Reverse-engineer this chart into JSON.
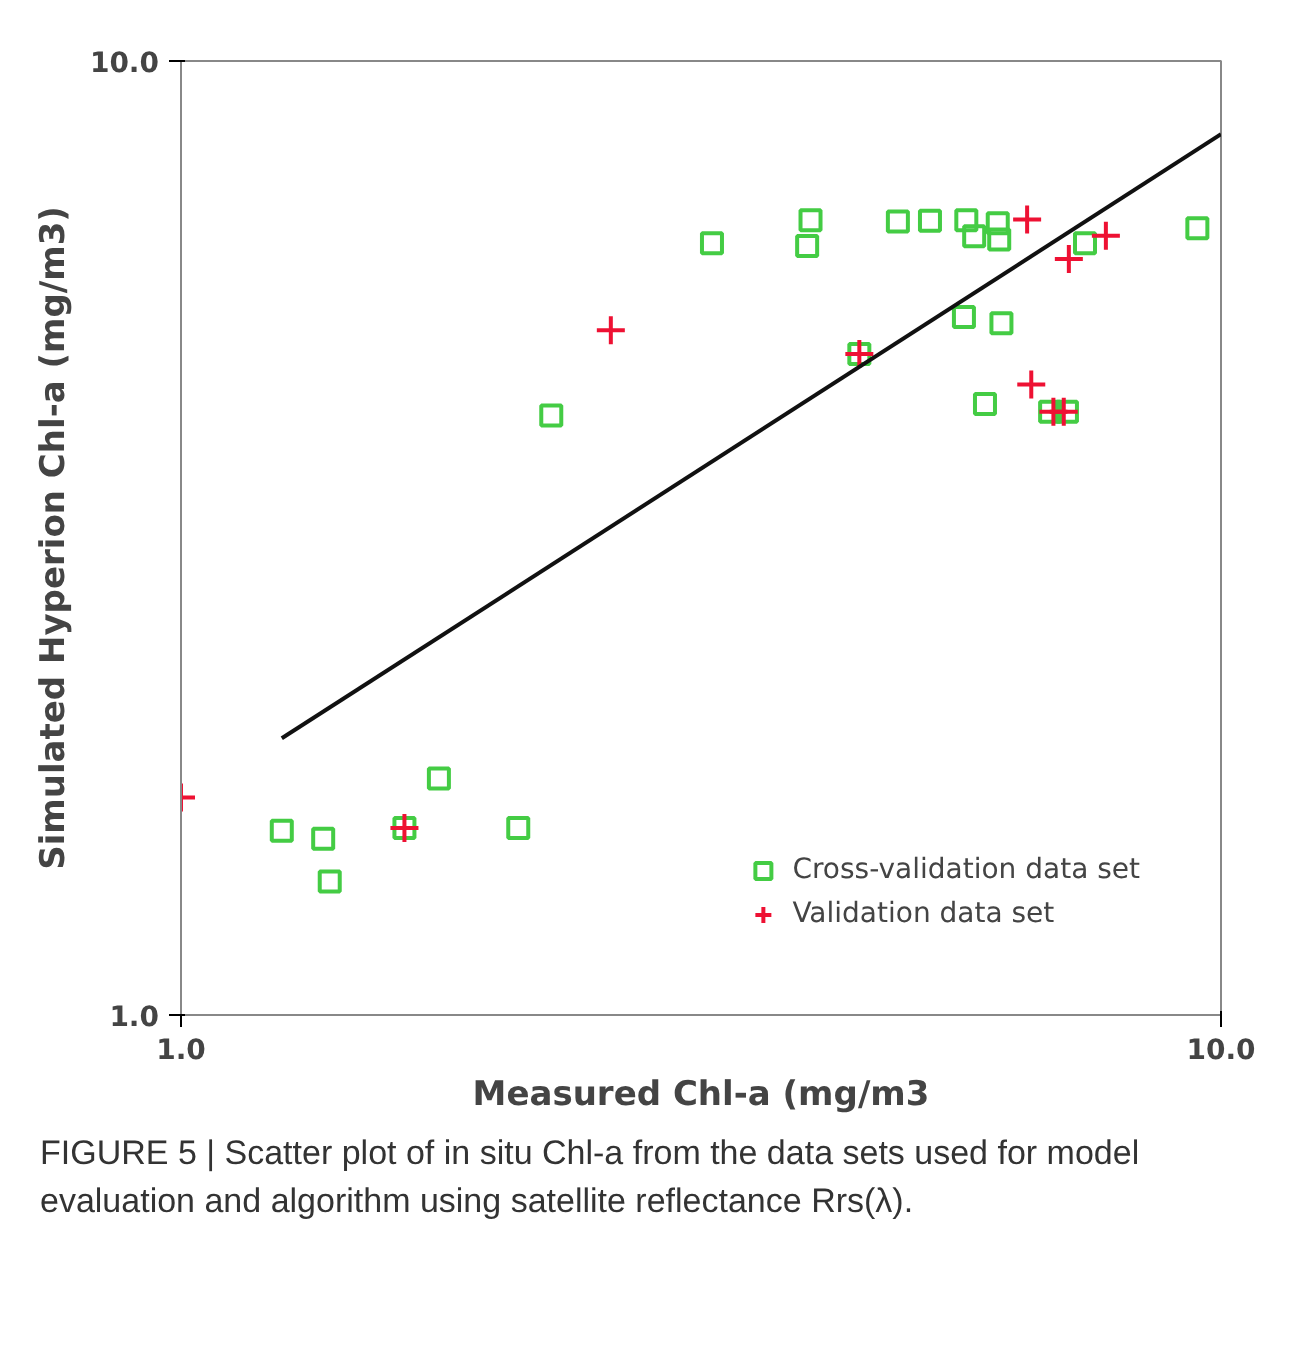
{
  "chart_data": {
    "type": "scatter",
    "xlabel": "Measured Chl-a (mg/m3",
    "ylabel": "Simulated Hyperion Chl-a (mg/m3)",
    "log": "xy",
    "xlim": [
      1,
      10
    ],
    "ylim": [
      1,
      10
    ],
    "xticks": [
      {
        "value": 1,
        "label": "1.0"
      },
      {
        "value": 10,
        "label": "10.0"
      }
    ],
    "yticks": [
      {
        "value": 1,
        "label": "1.0"
      },
      {
        "value": 10,
        "label": "10.0"
      }
    ],
    "legend": "bottom right",
    "series": [
      {
        "name": "Cross-validation data set",
        "color": "#44cc44",
        "marker": "square",
        "x": [
          3.24,
          4.03,
          4.0,
          4.89,
          5.25,
          5.69,
          5.79,
          6.1,
          6.12,
          7.4,
          9.49,
          5.66,
          6.15,
          4.49,
          2.27,
          5.93,
          6.85,
          7.11,
          1.77,
          1.25,
          1.37,
          1.39,
          1.64,
          2.11
        ],
        "values": [
          6.44,
          6.81,
          6.4,
          6.79,
          6.8,
          6.81,
          6.55,
          6.76,
          6.5,
          6.44,
          6.68,
          5.39,
          5.31,
          4.93,
          4.25,
          4.37,
          4.29,
          4.29,
          1.77,
          1.56,
          1.53,
          1.38,
          1.57,
          1.57
        ]
      },
      {
        "name": "Validation data set",
        "color": "#ee1133",
        "marker": "cross",
        "x": [
          1.0,
          1.64,
          2.59,
          4.49,
          6.51,
          7.75,
          7.14,
          6.57,
          6.9,
          7.06
        ],
        "values": [
          1.69,
          1.57,
          5.22,
          4.93,
          6.82,
          6.56,
          6.2,
          4.58,
          4.29,
          4.29
        ]
      },
      {
        "type": "line",
        "color": "#111111",
        "marker": "none",
        "x": [
          1.25,
          10
        ],
        "values": [
          1.95,
          8.38
        ]
      }
    ],
    "annotations": [
      "FIGURE 5 | Scatter plot of in situ Chl-a from the data sets used for model evaluation and algorithm using satellite reflectance Rrs(λ)."
    ]
  }
}
